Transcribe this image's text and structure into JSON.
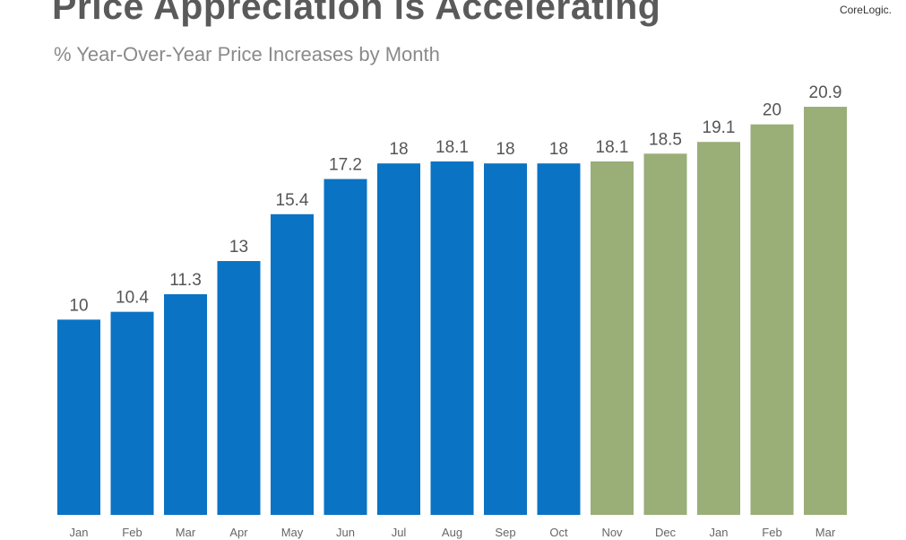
{
  "brand": {
    "name": "CoreLogic."
  },
  "chart_data": {
    "type": "bar",
    "title": "Price Appreciation is Accelerating",
    "subtitle": "% Year-Over-Year Price Increases by Month",
    "xlabel": "",
    "ylabel": "",
    "grid": false,
    "ylim": [
      0,
      21.5
    ],
    "categories": [
      "Jan",
      "Feb",
      "Mar",
      "Apr",
      "May",
      "Jun",
      "Jul",
      "Aug",
      "Sep",
      "Oct",
      "Nov",
      "Dec",
      "Jan",
      "Feb",
      "Mar"
    ],
    "values": [
      10,
      10.4,
      11.3,
      13,
      15.4,
      17.2,
      18,
      18.1,
      18,
      18,
      18.1,
      18.5,
      19.1,
      20,
      20.9
    ],
    "labels": [
      "10",
      "10.4",
      "11.3",
      "13",
      "15.4",
      "17.2",
      "18",
      "18.1",
      "18",
      "18",
      "18.1",
      "18.5",
      "19.1",
      "20",
      "20.9"
    ],
    "colors": [
      "#0a73c3",
      "#0a73c3",
      "#0a73c3",
      "#0a73c3",
      "#0a73c3",
      "#0a73c3",
      "#0a73c3",
      "#0a73c3",
      "#0a73c3",
      "#0a73c3",
      "#9aae78",
      "#9aae78",
      "#9aae78",
      "#9aae78",
      "#9aae78"
    ]
  }
}
